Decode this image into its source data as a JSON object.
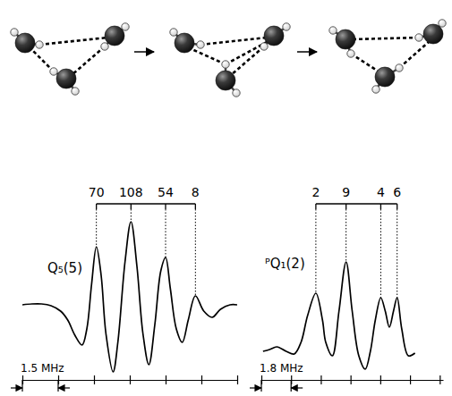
{
  "chart_data": [
    {
      "type": "line",
      "title": "Q₅(5)",
      "x": [
        0,
        0.4,
        0.8,
        1.2,
        1.6,
        1.9,
        2.2,
        2.5,
        2.7,
        2.9,
        3.1,
        3.3,
        3.5,
        3.8,
        4.0,
        4.3,
        4.55,
        4.8,
        5.05,
        5.3,
        5.55,
        5.8,
        6.0,
        6.2,
        6.45,
        6.7,
        6.95,
        7.25,
        7.6,
        7.95,
        8.3,
        8.7,
        9.0
      ],
      "values": [
        2,
        3,
        3,
        1,
        -5,
        -15,
        -32,
        -43,
        -25,
        25,
        67,
        35,
        -30,
        -73,
        -40,
        50,
        95,
        45,
        -30,
        -65,
        -20,
        40,
        55,
        20,
        -25,
        -40,
        -15,
        12,
        -5,
        -12,
        -3,
        2,
        2
      ],
      "color": "#000000",
      "xlim": [
        0,
        9
      ],
      "ylim": [
        -82,
        100
      ],
      "xticks": [
        0,
        1.5,
        3,
        4.5,
        6,
        7.5,
        9
      ],
      "tick_labels": false,
      "components": {
        "x": [
          3.1,
          4.55,
          6.0,
          7.25
        ],
        "weights": [
          70,
          108,
          54,
          8
        ]
      },
      "scale_bar": {
        "length": 1.5,
        "label": "1.5 MHz"
      }
    },
    {
      "type": "line",
      "title": "ᴾQ₁(2)",
      "x": [
        0.1,
        0.5,
        0.94,
        1.5,
        1.99,
        2.4,
        2.8,
        3.3,
        3.7,
        3.9,
        4.3,
        4.7,
        5.13,
        5.5,
        5.9,
        6.29,
        6.6,
        6.9,
        7.23,
        7.5,
        7.75,
        8.0,
        8.22,
        8.5,
        8.9,
        9.3
      ],
      "values": [
        0,
        2,
        5,
        0,
        -3,
        10,
        40,
        65,
        35,
        10,
        -5,
        45,
        100,
        45,
        -5,
        -20,
        0,
        35,
        60,
        45,
        27,
        45,
        60,
        25,
        -5,
        -2
      ],
      "color": "#000000",
      "xlim": [
        0,
        11
      ],
      "ylim": [
        -32,
        110
      ],
      "xticks": [
        0,
        1.8,
        3.6,
        5.4,
        7.2,
        9.0,
        10.8
      ],
      "tick_labels": false,
      "components": {
        "x": [
          3.3,
          5.13,
          7.23,
          8.22
        ],
        "weights": [
          2,
          9,
          4,
          6
        ]
      },
      "scale_bar": {
        "length": 1.8,
        "label": "1.8 MHz"
      }
    }
  ]
}
